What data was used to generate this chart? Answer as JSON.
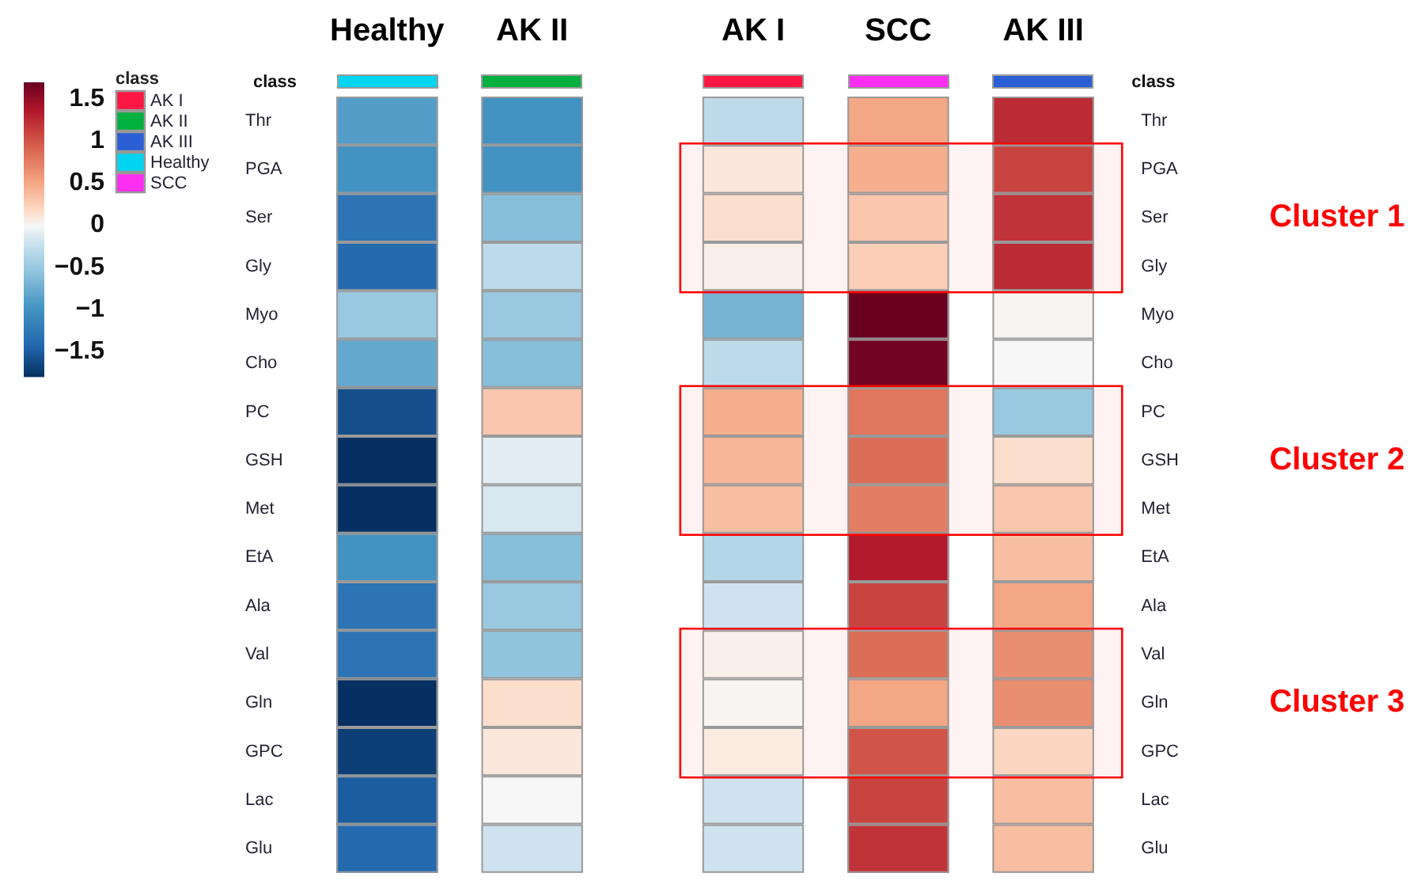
{
  "chart_data": {
    "type": "heatmap",
    "categories": [
      "Healthy",
      "AK II",
      "AK I",
      "SCC",
      "AK III"
    ],
    "y_categories": [
      "Thr",
      "PGA",
      "Ser",
      "Gly",
      "Myo",
      "Cho",
      "PC",
      "GSH",
      "Met",
      "EtA",
      "Ala",
      "Val",
      "Gln",
      "GPC",
      "Lac",
      "Glu"
    ],
    "y2_categories": [
      "Thr",
      "PGA",
      "Ser",
      "Gly",
      "Myo",
      "Cho",
      "PC",
      "GSH",
      "Met",
      "EtA",
      "Ala",
      "Val",
      "Gln",
      "GPC",
      "Lac",
      "Glu"
    ],
    "cells": [
      [
        -0.9,
        -1.0,
        -0.3,
        0.5,
        1.25
      ],
      [
        -1.0,
        -1.0,
        0.1,
        0.45,
        1.1
      ],
      [
        -1.3,
        -0.6,
        0.15,
        0.3,
        1.2
      ],
      [
        -1.4,
        -0.3,
        0.05,
        0.25,
        1.25
      ],
      [
        -0.5,
        -0.5,
        -0.7,
        1.7,
        0.02
      ],
      [
        -0.8,
        -0.6,
        -0.3,
        1.65,
        0
      ],
      [
        -1.6,
        0.3,
        0.45,
        0.8,
        -0.5
      ],
      [
        -1.8,
        -0.1,
        0.4,
        0.85,
        0.15
      ],
      [
        -1.8,
        -0.15,
        0.35,
        0.75,
        0.3
      ],
      [
        -1.0,
        -0.6,
        -0.35,
        1.35,
        0.35
      ],
      [
        -1.3,
        -0.5,
        -0.2,
        1.1,
        0.5
      ],
      [
        -1.3,
        -0.55,
        0.05,
        0.85,
        0.65
      ],
      [
        -1.8,
        0.15,
        0.02,
        0.5,
        0.65
      ],
      [
        -1.7,
        0.1,
        0.08,
        1.0,
        0.2
      ],
      [
        -1.5,
        0,
        -0.2,
        1.1,
        0.35
      ],
      [
        -1.4,
        -0.2,
        -0.2,
        1.2,
        0.35
      ]
    ],
    "clim": [
      -1.8,
      1.7
    ],
    "cticks": [
      {
        "value": -1.5,
        "label": "−1.5"
      },
      {
        "value": -1,
        "label": "−1"
      },
      {
        "value": -0.5,
        "label": "−0.5"
      },
      0,
      0.5,
      1,
      1.5
    ],
    "colors": [
      "#00d4f0",
      "#00b140",
      "#ff1744",
      "#ff2ef0",
      "#2a5fd6"
    ],
    "legend": "left",
    "legend_title": "class",
    "series": [
      {
        "name": "AK I",
        "color": "#ff1744",
        "values": [
          null,
          null,
          null,
          null,
          null
        ]
      },
      {
        "name": "AK II",
        "color": "#00b140",
        "values": [
          null,
          null,
          null,
          null,
          null
        ]
      },
      {
        "name": "AK III",
        "color": "#2a5fd6",
        "values": [
          null,
          null,
          null,
          null,
          null
        ]
      },
      {
        "name": "Healthy",
        "color": "#00d4f0",
        "values": [
          null,
          null,
          null,
          null,
          null
        ]
      },
      {
        "name": "SCC",
        "color": "#ff2ef0",
        "values": [
          null,
          null,
          null,
          null,
          null
        ]
      }
    ],
    "bands": [
      {
        "axis": "y",
        "from": "PGA",
        "to": "Gly",
        "label": "Cluster 1",
        "color": "#ff0000"
      },
      {
        "axis": "y",
        "from": "PC",
        "to": "Met",
        "label": "Cluster 2",
        "color": "#ff0000"
      },
      {
        "axis": "y",
        "from": "Val",
        "to": "GPC",
        "label": "Cluster 3",
        "color": "#ff0000"
      }
    ]
  }
}
